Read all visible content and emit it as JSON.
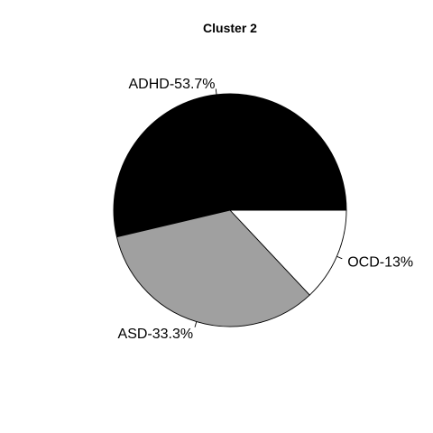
{
  "chart_data": {
    "type": "pie",
    "title": "Cluster 2",
    "slices": [
      {
        "label": "ADHD-53.7%",
        "value": 53.7,
        "color": "#000000"
      },
      {
        "label": "ASD-33.3%",
        "value": 33.3,
        "color": "#a0a0a0"
      },
      {
        "label": "OCD-13%",
        "value": 13.0,
        "color": "#ffffff"
      }
    ],
    "start": "3 o'clock",
    "direction": "counterclockwise"
  }
}
